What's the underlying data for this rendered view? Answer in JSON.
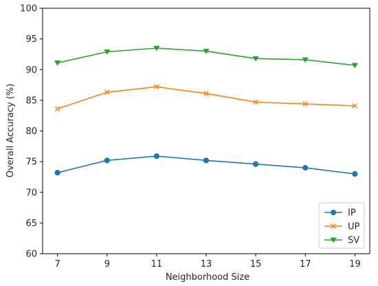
{
  "chart_data": {
    "type": "line",
    "title": "",
    "xlabel": "Neighborhood Size",
    "ylabel": "Overall Accuracy (%)",
    "x": [
      7,
      9,
      11,
      13,
      15,
      17,
      19
    ],
    "xlim": [
      6.4,
      19.6
    ],
    "ylim": [
      60,
      100
    ],
    "xticks": [
      "7",
      "9",
      "11",
      "13",
      "15",
      "17",
      "19"
    ],
    "yticks": [
      "60",
      "65",
      "70",
      "75",
      "80",
      "85",
      "90",
      "95",
      "100"
    ],
    "grid": false,
    "legend_position": "lower-right",
    "series": [
      {
        "name": "IP",
        "color": "#1f77b4",
        "marker": "circle",
        "values": [
          73.2,
          75.2,
          75.9,
          75.2,
          74.6,
          74.0,
          73.0
        ]
      },
      {
        "name": "UP",
        "color": "#ff7f0e",
        "marker": "x",
        "values": [
          83.6,
          86.3,
          87.2,
          86.1,
          84.7,
          84.4,
          84.1
        ]
      },
      {
        "name": "SV",
        "color": "#2ca02c",
        "marker": "triangle-down",
        "values": [
          91.1,
          92.9,
          93.5,
          93.0,
          91.8,
          91.6,
          90.7
        ]
      }
    ]
  }
}
